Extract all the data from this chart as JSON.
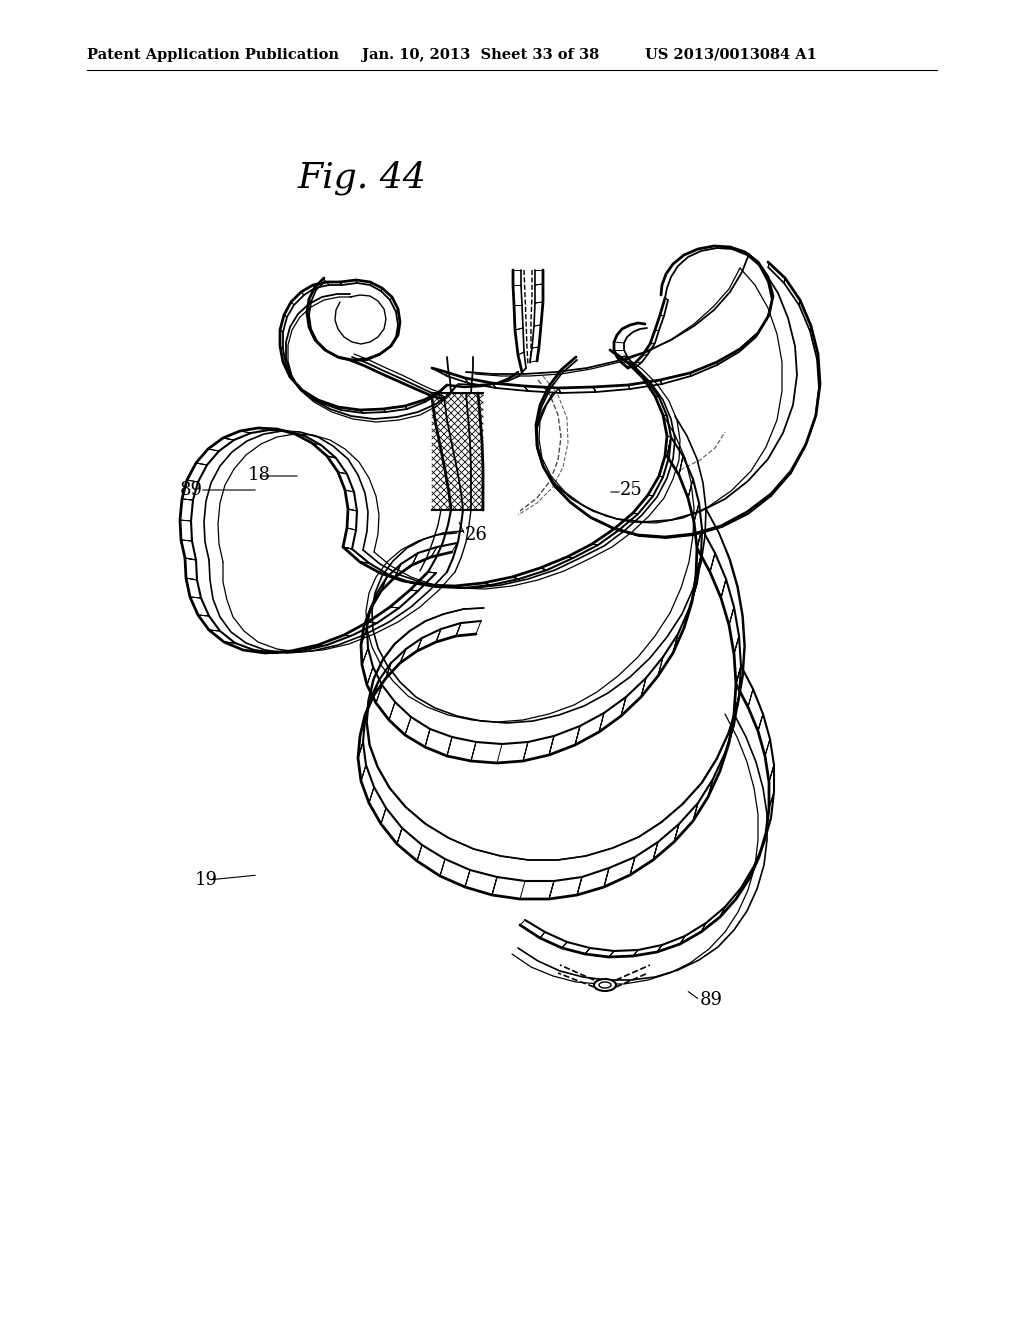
{
  "header_left": "Patent Application Publication",
  "header_center": "Jan. 10, 2013  Sheet 33 of 38",
  "header_right": "US 2013/0013084 A1",
  "fig_title": "Fig. 44",
  "bg_color": "#ffffff",
  "line_color": "#000000"
}
